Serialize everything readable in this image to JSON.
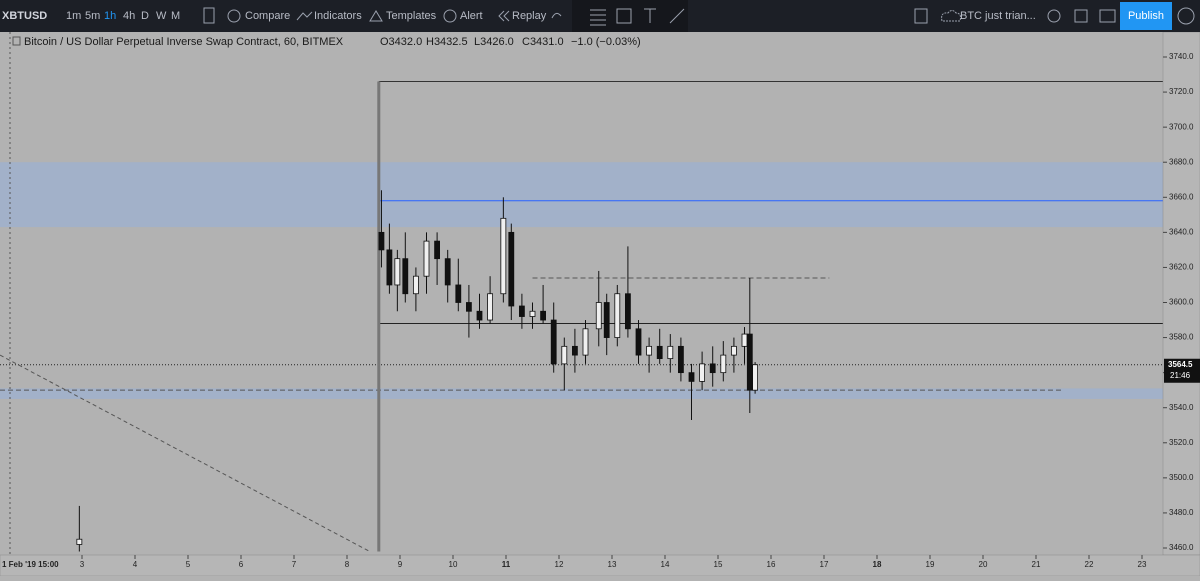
{
  "toolbar": {
    "symbol": "XBTUSD",
    "intervals": [
      "1m",
      "5m",
      "1h",
      "4h",
      "D",
      "W",
      "M"
    ],
    "compare": "Compare",
    "indicators": "Indicators",
    "templates": "Templates",
    "alert": "Alert",
    "replay": "Replay",
    "layout_name": "BTC just trian...",
    "publish": "Publish"
  },
  "legend": {
    "title": "Bitcoin / US Dollar Perpetual Inverse Swap Contract, 60, BITMEX",
    "open": "O3432.0",
    "high": "H3432.5",
    "low": "L3426.0",
    "close": "C3431.0",
    "change": "−1.0 (−0.03%)"
  },
  "price_axis": {
    "ylim": [
      3460,
      3740
    ],
    "ticks": [
      {
        "value": 3460,
        "label": "3460.0"
      },
      {
        "value": 3480,
        "label": "3480.0"
      },
      {
        "value": 3500,
        "label": "3500.0"
      },
      {
        "value": 3520,
        "label": "3520.0"
      },
      {
        "value": 3540,
        "label": "3540.0"
      },
      {
        "value": 3560,
        "label": "3560.0"
      },
      {
        "value": 3580,
        "label": "3580.0"
      },
      {
        "value": 3600,
        "label": "3600.0"
      },
      {
        "value": 3620,
        "label": "3620.0"
      },
      {
        "value": 3640,
        "label": "3640.0"
      },
      {
        "value": 3660,
        "label": "3660.0"
      },
      {
        "value": 3680,
        "label": "3680.0"
      },
      {
        "value": 3700,
        "label": "3700.0"
      },
      {
        "value": 3720,
        "label": "3720.0"
      },
      {
        "value": 3740,
        "label": "3740.0"
      }
    ],
    "last_price": {
      "value": 3564.5,
      "label": "3564.5"
    },
    "countdown": "21:46"
  },
  "time_axis": {
    "xlim": [
      1.453,
      23.396
    ],
    "ticks": [
      3,
      4,
      5,
      6,
      7,
      8,
      9,
      10,
      11,
      12,
      13,
      14,
      15,
      16,
      17,
      18,
      19,
      20,
      21,
      22,
      23
    ],
    "cursor_label": "1 Feb '19  15:00"
  },
  "drawings": {
    "zones": [
      {
        "from": 3643,
        "to": 3680,
        "color": "#9fb0cc"
      },
      {
        "from": 3545,
        "to": 3551,
        "color": "#9fb0cc"
      }
    ],
    "lines": [
      {
        "price": 3726,
        "start": 8.6,
        "end": 23.396,
        "style": "solid",
        "color": "#333333"
      },
      {
        "price": 3658,
        "start": 8.6,
        "end": 23.396,
        "style": "solid",
        "color": "#2962ff"
      },
      {
        "price": 3614,
        "start": 11.5,
        "end": 17.1,
        "style": "dashed",
        "color": "#555555"
      },
      {
        "price": 3588,
        "start": 8.6,
        "end": 23.396,
        "style": "solid",
        "color": "#222222"
      },
      {
        "price": 3564.5,
        "start": 1.453,
        "end": 23.396,
        "style": "dotted",
        "color": "#222222"
      },
      {
        "price": 3550,
        "start": 1.453,
        "end": 21.5,
        "style": "dashed",
        "color": "#555555"
      }
    ],
    "trend_lines": [
      {
        "start": 1.453,
        "start_price": 3570,
        "end": 8.43,
        "end_price": 3458
      }
    ],
    "rect_edge": {
      "at": 8.6,
      "from": 3458,
      "to": 3726
    }
  },
  "candles": [
    {
      "t": 2.95,
      "o": 3462,
      "h": 3484,
      "l": 3458,
      "c": 3465
    },
    {
      "t": 8.65,
      "o": 3640,
      "h": 3664,
      "l": 3620,
      "c": 3630
    },
    {
      "t": 8.8,
      "o": 3630,
      "h": 3645,
      "l": 3605,
      "c": 3610
    },
    {
      "t": 8.95,
      "o": 3610,
      "h": 3630,
      "l": 3595,
      "c": 3625
    },
    {
      "t": 9.1,
      "o": 3625,
      "h": 3640,
      "l": 3600,
      "c": 3605
    },
    {
      "t": 9.3,
      "o": 3605,
      "h": 3620,
      "l": 3595,
      "c": 3615
    },
    {
      "t": 9.5,
      "o": 3615,
      "h": 3640,
      "l": 3605,
      "c": 3635
    },
    {
      "t": 9.7,
      "o": 3635,
      "h": 3640,
      "l": 3610,
      "c": 3625
    },
    {
      "t": 9.9,
      "o": 3625,
      "h": 3630,
      "l": 3600,
      "c": 3610
    },
    {
      "t": 10.1,
      "o": 3610,
      "h": 3625,
      "l": 3595,
      "c": 3600
    },
    {
      "t": 10.3,
      "o": 3600,
      "h": 3610,
      "l": 3580,
      "c": 3595
    },
    {
      "t": 10.5,
      "o": 3595,
      "h": 3605,
      "l": 3585,
      "c": 3590
    },
    {
      "t": 10.7,
      "o": 3590,
      "h": 3615,
      "l": 3588,
      "c": 3605
    },
    {
      "t": 10.95,
      "o": 3605,
      "h": 3660,
      "l": 3600,
      "c": 3648
    },
    {
      "t": 11.1,
      "o": 3640,
      "h": 3645,
      "l": 3590,
      "c": 3598
    },
    {
      "t": 11.3,
      "o": 3598,
      "h": 3605,
      "l": 3585,
      "c": 3592
    },
    {
      "t": 11.5,
      "o": 3592,
      "h": 3600,
      "l": 3585,
      "c": 3595
    },
    {
      "t": 11.7,
      "o": 3595,
      "h": 3610,
      "l": 3588,
      "c": 3590
    },
    {
      "t": 11.9,
      "o": 3590,
      "h": 3600,
      "l": 3560,
      "c": 3565
    },
    {
      "t": 12.1,
      "o": 3565,
      "h": 3580,
      "l": 3550,
      "c": 3575
    },
    {
      "t": 12.3,
      "o": 3575,
      "h": 3585,
      "l": 3560,
      "c": 3570
    },
    {
      "t": 12.5,
      "o": 3570,
      "h": 3590,
      "l": 3565,
      "c": 3585
    },
    {
      "t": 12.75,
      "o": 3585,
      "h": 3618,
      "l": 3575,
      "c": 3600
    },
    {
      "t": 12.9,
      "o": 3600,
      "h": 3605,
      "l": 3570,
      "c": 3580
    },
    {
      "t": 13.1,
      "o": 3580,
      "h": 3610,
      "l": 3575,
      "c": 3605
    },
    {
      "t": 13.3,
      "o": 3605,
      "h": 3632,
      "l": 3580,
      "c": 3585
    },
    {
      "t": 13.5,
      "o": 3585,
      "h": 3590,
      "l": 3565,
      "c": 3570
    },
    {
      "t": 13.7,
      "o": 3570,
      "h": 3580,
      "l": 3560,
      "c": 3575
    },
    {
      "t": 13.9,
      "o": 3575,
      "h": 3585,
      "l": 3565,
      "c": 3568
    },
    {
      "t": 14.1,
      "o": 3568,
      "h": 3582,
      "l": 3560,
      "c": 3575
    },
    {
      "t": 14.3,
      "o": 3575,
      "h": 3580,
      "l": 3555,
      "c": 3560
    },
    {
      "t": 14.5,
      "o": 3560,
      "h": 3565,
      "l": 3533,
      "c": 3555
    },
    {
      "t": 14.7,
      "o": 3555,
      "h": 3572,
      "l": 3550,
      "c": 3565
    },
    {
      "t": 14.9,
      "o": 3565,
      "h": 3575,
      "l": 3552,
      "c": 3560
    },
    {
      "t": 15.1,
      "o": 3560,
      "h": 3578,
      "l": 3555,
      "c": 3570
    },
    {
      "t": 15.3,
      "o": 3570,
      "h": 3580,
      "l": 3560,
      "c": 3575
    },
    {
      "t": 15.5,
      "o": 3575,
      "h": 3586,
      "l": 3565,
      "c": 3582
    },
    {
      "t": 15.6,
      "o": 3582,
      "h": 3614,
      "l": 3537,
      "c": 3550
    },
    {
      "t": 15.7,
      "o": 3550,
      "h": 3566,
      "l": 3548,
      "c": 3564.5
    }
  ]
}
